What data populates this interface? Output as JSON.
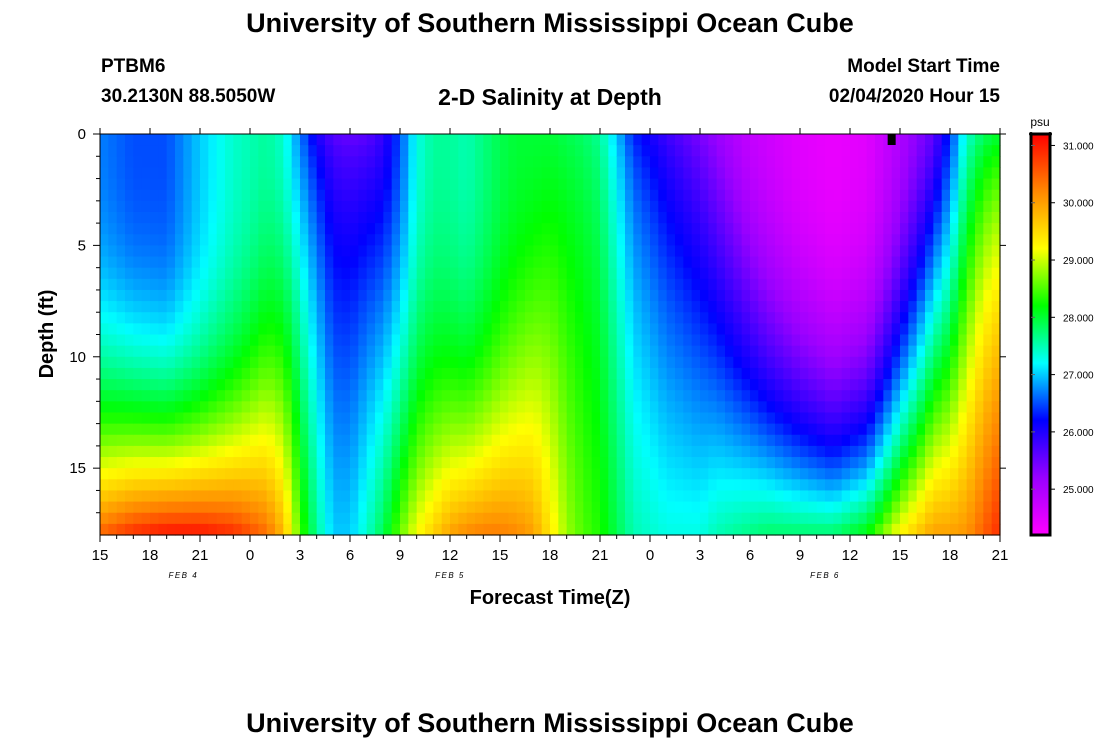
{
  "header": {
    "title": "University of Southern Mississippi Ocean Cube",
    "station": "PTBM6",
    "coords": "30.2130N 88.5050W",
    "subtitle": "2-D Salinity at Depth",
    "model_start_label": "Model Start Time",
    "model_start_value": "02/04/2020 Hour 15"
  },
  "footer": {
    "title": "University of Southern Mississippi Ocean Cube"
  },
  "chart_data": {
    "type": "heatmap",
    "title": "2-D Salinity at Depth",
    "xlabel": "Forecast Time(Z)",
    "ylabel": "Depth (ft)",
    "x_start_hour": 15,
    "x_range_hours": [
      0,
      54
    ],
    "x_tick_labels": [
      "15",
      "18",
      "21",
      "0",
      "3",
      "6",
      "9",
      "12",
      "15",
      "18",
      "21",
      "0",
      "3",
      "6",
      "9",
      "12",
      "15",
      "18",
      "21"
    ],
    "date_labels": [
      {
        "text": "FEB 4",
        "hour": 5
      },
      {
        "text": "FEB 5",
        "hour": 21
      },
      {
        "text": "FEB 6",
        "hour": 43.5
      }
    ],
    "y_ticks": [
      0,
      5,
      10,
      15
    ],
    "y_range": [
      0,
      18
    ],
    "colorbar": {
      "unit": "psu",
      "range": [
        24.2,
        31.2
      ],
      "tick_labels": [
        "31.000",
        "30.000",
        "29.000",
        "28.000",
        "27.000",
        "26.000",
        "25.000"
      ],
      "tick_values": [
        31,
        30,
        29,
        28,
        27,
        26,
        25
      ],
      "colors": [
        "#ff00ff",
        "#9900ff",
        "#0000ff",
        "#00ffff",
        "#00ff00",
        "#ffff00",
        "#ff8800",
        "#ff0000"
      ]
    },
    "marker": {
      "hour": 47.5,
      "depth": 0.3
    },
    "time_profile": {
      "hours": [
        0,
        2,
        4,
        6,
        8,
        10,
        11,
        12,
        13,
        14,
        15,
        16,
        17,
        18,
        19,
        20,
        21,
        22,
        23,
        24,
        25,
        26,
        27,
        28,
        29,
        30,
        32,
        34,
        36,
        37,
        38,
        39,
        40,
        42,
        44,
        46,
        48,
        50,
        51,
        52,
        53,
        54
      ],
      "surface": [
        26.7,
        26.5,
        26.5,
        27.0,
        27.4,
        27.6,
        27.4,
        26.7,
        26.0,
        25.6,
        25.5,
        25.6,
        25.9,
        26.5,
        27.3,
        27.6,
        27.6,
        27.5,
        27.7,
        27.9,
        28.0,
        28.0,
        28.0,
        27.9,
        27.8,
        27.6,
        26.3,
        25.8,
        25.4,
        25.2,
        25.0,
        24.8,
        24.7,
        24.5,
        24.4,
        24.5,
        25.0,
        25.6,
        26.4,
        27.4,
        27.8,
        28.0
      ],
      "bottom": [
        30.5,
        30.9,
        31.1,
        31.1,
        30.9,
        30.4,
        29.8,
        28.5,
        27.6,
        27.0,
        27.0,
        27.4,
        27.9,
        28.6,
        29.2,
        29.6,
        30.0,
        30.2,
        30.3,
        30.3,
        30.2,
        30.0,
        29.4,
        28.8,
        28.5,
        28.3,
        27.5,
        27.3,
        27.3,
        27.5,
        27.6,
        27.7,
        27.8,
        27.8,
        27.8,
        28.2,
        29.3,
        30.0,
        30.0,
        30.1,
        30.5,
        30.9
      ],
      "shape_power": [
        2.5,
        2.6,
        2.8,
        3.0,
        2.8,
        2.0,
        1.6,
        1.0,
        0.7,
        0.7,
        0.7,
        0.8,
        1.1,
        1.5,
        1.9,
        2.2,
        2.4,
        2.5,
        2.5,
        2.3,
        2.0,
        1.6,
        1.2,
        0.9,
        0.8,
        0.7,
        0.7,
        0.8,
        0.9,
        1.1,
        1.3,
        1.5,
        1.8,
        2.2,
        2.6,
        2.5,
        1.8,
        1.2,
        1.2,
        1.0,
        0.8,
        0.8
      ]
    }
  }
}
